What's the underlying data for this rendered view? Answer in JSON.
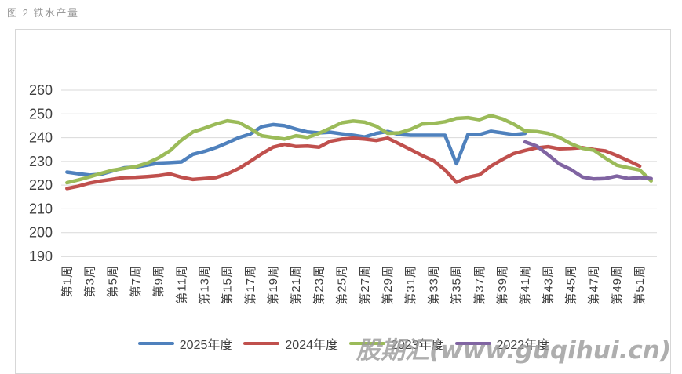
{
  "title": "图 2 铁水产量",
  "watermark": "股期汇(www.guqihui.cn)",
  "chart_data": {
    "type": "line",
    "title": "铁水产量",
    "grid": true,
    "legend_position": "bottom",
    "x_axis": {
      "n_points": 52,
      "unit": "周",
      "tick_labels": [
        "第1周",
        "第3周",
        "第5周",
        "第7周",
        "第9周",
        "第11周",
        "第13周",
        "第15周",
        "第17周",
        "第19周",
        "第21周",
        "第23周",
        "第25周",
        "第27周",
        "第29周",
        "第31周",
        "第33周",
        "第35周",
        "第37周",
        "第39周",
        "第41周",
        "第43周",
        "第45周",
        "第47周",
        "第49周",
        "第51周"
      ]
    },
    "y_axis": {
      "min": 190,
      "max": 260,
      "step": 10,
      "ticks": [
        190,
        200,
        210,
        220,
        230,
        240,
        250,
        260
      ]
    },
    "series": [
      {
        "name": "2025年度",
        "color": "#4F81BD",
        "start_week": 1,
        "values": [
          225.5,
          224.8,
          224.2,
          224.6,
          226.0,
          227.3,
          227.6,
          228.4,
          229.3,
          229.5,
          229.8,
          233.0,
          234.2,
          235.8,
          237.8,
          240.0,
          241.5,
          244.6,
          245.5,
          245.0,
          243.6,
          242.4,
          242.0,
          242.3,
          241.6,
          241.0,
          240.3,
          241.8,
          242.6,
          241.3,
          241.0,
          241.0,
          241.0,
          241.0,
          229.0,
          241.3,
          241.3,
          242.7,
          242.0,
          241.3,
          241.8
        ]
      },
      {
        "name": "2024年度",
        "color": "#C0504D",
        "start_week": 1,
        "values": [
          218.6,
          219.6,
          220.9,
          221.8,
          222.5,
          223.2,
          223.3,
          223.6,
          224.0,
          224.7,
          223.3,
          222.4,
          222.8,
          223.2,
          224.7,
          227.0,
          230.0,
          233.2,
          236.0,
          237.2,
          236.3,
          236.5,
          236.0,
          238.5,
          239.4,
          239.8,
          239.4,
          238.8,
          239.8,
          237.4,
          235.0,
          232.5,
          230.3,
          226.4,
          221.2,
          223.3,
          224.3,
          228.0,
          230.8,
          233.3,
          234.6,
          235.7,
          236.2,
          235.3,
          235.5,
          235.8,
          235.0,
          234.4,
          232.5,
          230.3,
          228.0
        ]
      },
      {
        "name": "2023年度",
        "color": "#9BBB59",
        "start_week": 1,
        "values": [
          221.0,
          222.2,
          223.5,
          225.0,
          226.3,
          227.0,
          227.8,
          229.3,
          231.5,
          234.5,
          239.0,
          242.4,
          244.0,
          245.7,
          247.1,
          246.4,
          243.8,
          240.8,
          240.1,
          239.4,
          240.8,
          240.1,
          241.8,
          244.0,
          246.3,
          247.0,
          246.5,
          244.8,
          241.8,
          242.0,
          243.5,
          245.7,
          246.0,
          246.7,
          248.1,
          248.4,
          247.6,
          249.3,
          247.9,
          245.7,
          242.8,
          242.6,
          241.8,
          240.1,
          237.4,
          235.5,
          234.7,
          231.4,
          228.4,
          227.3,
          226.4,
          221.8
        ]
      },
      {
        "name": "2022年度",
        "color": "#8064A2",
        "start_week": 41,
        "values": [
          238.2,
          236.5,
          232.8,
          228.9,
          226.6,
          223.4,
          222.6,
          222.8,
          223.8,
          222.8,
          223.2,
          222.8
        ]
      }
    ]
  }
}
